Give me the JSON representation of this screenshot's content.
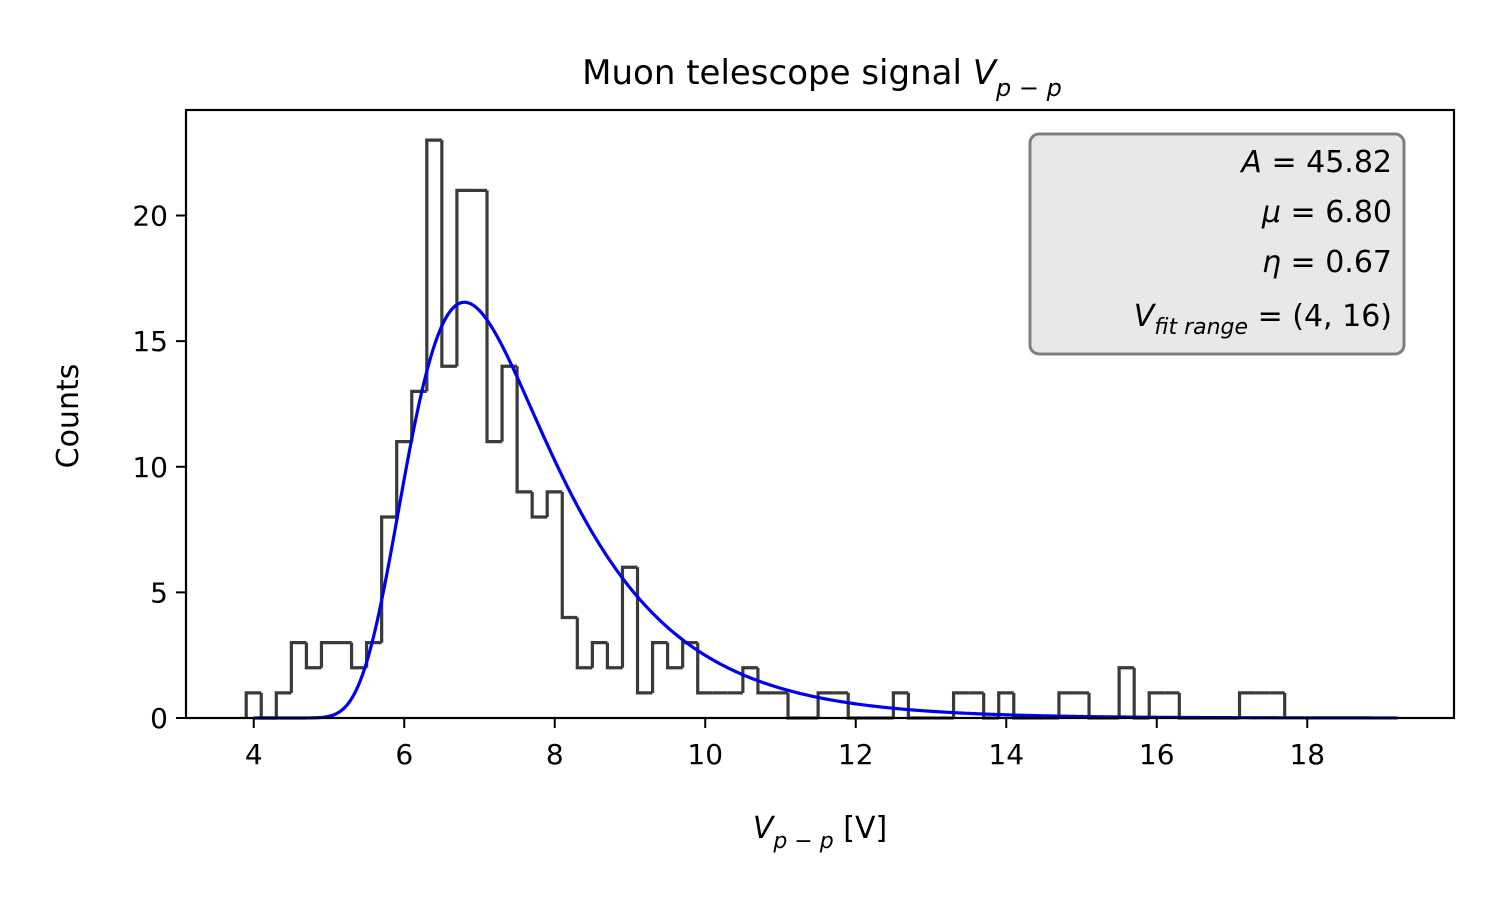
{
  "chart_data": {
    "type": "histogram",
    "title": {
      "main": "Muon telescope signal ",
      "var": "V",
      "sub": "p − p"
    },
    "xlabel": {
      "var": "V",
      "sub": "p − p",
      "unit": " [V]"
    },
    "ylabel": "Counts",
    "xlim": [
      3.1,
      19.95
    ],
    "ylim": [
      0,
      24.2
    ],
    "x_ticks": [
      4,
      6,
      8,
      10,
      12,
      14,
      16,
      18
    ],
    "y_ticks": [
      0,
      5,
      10,
      15,
      20
    ],
    "histogram": {
      "color": "#3a3a3a",
      "bin_edges": [
        3.9,
        4.1,
        4.3,
        4.5,
        4.7,
        4.9,
        5.1,
        5.3,
        5.5,
        5.7,
        5.9,
        6.1,
        6.3,
        6.5,
        6.7,
        6.9,
        7.1,
        7.3,
        7.5,
        7.7,
        7.9,
        8.1,
        8.3,
        8.5,
        8.7,
        8.9,
        9.1,
        9.3,
        9.5,
        9.7,
        9.9,
        10.1,
        10.3,
        10.5,
        10.7,
        10.9,
        11.1,
        11.3,
        11.5,
        11.7,
        11.9,
        12.1,
        12.3,
        12.5,
        12.7,
        12.9,
        13.1,
        13.3,
        13.5,
        13.7,
        13.9,
        14.1,
        14.3,
        14.5,
        14.7,
        14.9,
        15.1,
        15.3,
        15.5,
        15.7,
        15.9,
        16.1,
        16.3,
        16.5,
        16.7,
        16.9,
        17.1,
        17.3,
        17.5,
        17.7
      ],
      "counts": [
        1,
        0,
        1,
        3,
        2,
        3,
        3,
        2,
        3,
        8,
        11,
        13,
        23,
        14,
        21,
        21,
        11,
        14,
        9,
        8,
        9,
        4,
        2,
        3,
        2,
        6,
        1,
        3,
        2,
        3,
        1,
        1,
        1,
        2,
        1,
        1,
        0,
        0,
        1,
        1,
        0,
        0,
        0,
        1,
        0,
        0,
        0,
        1,
        1,
        0,
        1,
        0,
        0,
        0,
        1,
        1,
        0,
        0,
        2,
        0,
        1,
        1,
        0,
        0,
        0,
        0,
        1,
        1,
        1
      ]
    },
    "fit": {
      "color": "#0000ee",
      "model": "moyal",
      "x_range": [
        4.0,
        19.2
      ],
      "A": 45.82,
      "mu": 6.8,
      "eta": 0.67
    },
    "annotation_box": {
      "placement": "top-right",
      "lines": [
        {
          "var": "A",
          "rest": " = 45.82"
        },
        {
          "var": "μ",
          "rest": " = 6.80"
        },
        {
          "var": "η",
          "rest": " = 0.67"
        },
        {
          "var": "V",
          "sub": "fit range",
          "rest": " = (4, 16)"
        }
      ]
    }
  }
}
